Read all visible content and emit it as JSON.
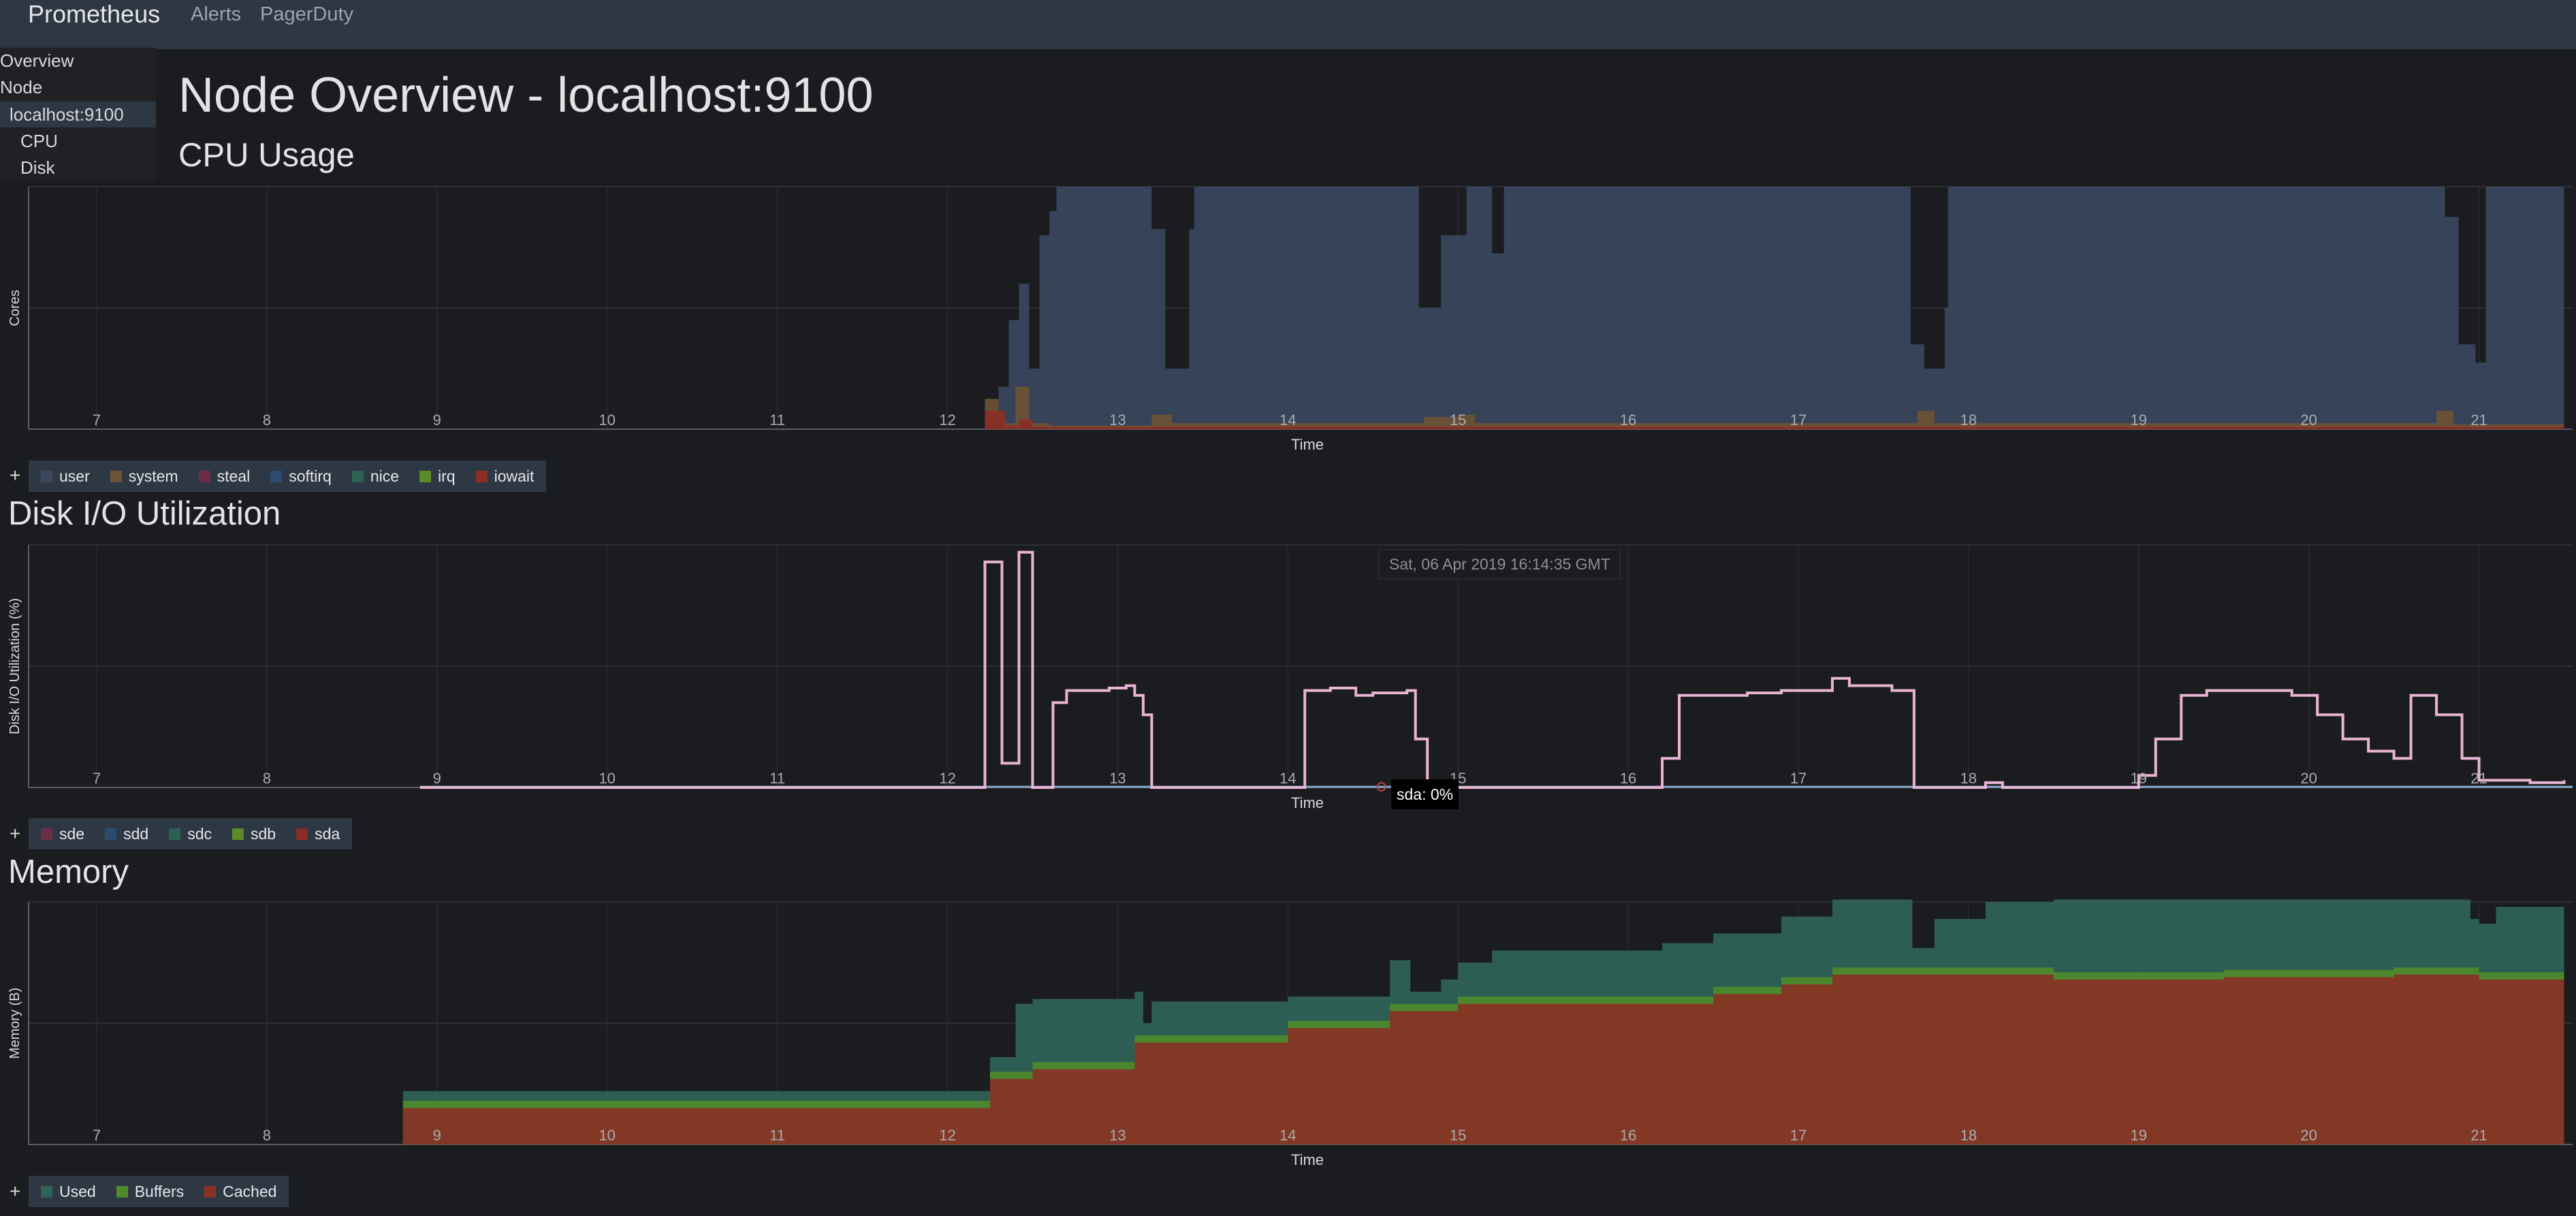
{
  "navbar": {
    "brand": "Prometheus",
    "links": [
      "Alerts",
      "PagerDuty"
    ]
  },
  "sidebar": {
    "items": [
      "Overview",
      "Node",
      "localhost:9100",
      "CPU",
      "Disk"
    ],
    "active": "localhost:9100"
  },
  "page_title": "Node Overview - localhost:9100",
  "colors": {
    "user": "#3a475d",
    "system": "#6e5335",
    "steal": "#6b2f45",
    "softirq": "#2b4c6e",
    "nice": "#2c6254",
    "irq": "#5e8a2a",
    "iowait": "#8c2e25",
    "disk_line": "#e8b4d3",
    "disk_base": "#86a8c8",
    "used": "#2f6358",
    "buffers": "#4f8a2c",
    "cached": "#883226"
  },
  "chart_data": [
    {
      "type": "area",
      "id": "cpu",
      "title": "CPU Usage",
      "xlabel": "Time",
      "ylabel": "Cores",
      "x_ticks": [
        "7",
        "8",
        "9",
        "10",
        "11",
        "12",
        "13",
        "14",
        "15",
        "16",
        "17",
        "18",
        "19",
        "20",
        "21"
      ],
      "xlim": [
        6.6,
        21.55
      ],
      "ylim": [
        0,
        2
      ],
      "legend_plus": "+",
      "legend": [
        "user",
        "system",
        "steal",
        "softirq",
        "nice",
        "irq",
        "iowait"
      ],
      "series": [
        {
          "name": "user",
          "color_key": "user",
          "points": [
            [
              12.22,
              0.05
            ],
            [
              12.3,
              0.35
            ],
            [
              12.36,
              0.9
            ],
            [
              12.42,
              1.2
            ],
            [
              12.48,
              0.5
            ],
            [
              12.54,
              1.6
            ],
            [
              12.6,
              1.8
            ],
            [
              12.64,
              2
            ],
            [
              13.15,
              2
            ],
            [
              13.2,
              1.65
            ],
            [
              13.28,
              0.5
            ],
            [
              13.42,
              1.65
            ],
            [
              13.45,
              2
            ],
            [
              14.72,
              2
            ],
            [
              14.77,
              1.0
            ],
            [
              14.9,
              1.6
            ],
            [
              15.05,
              2
            ],
            [
              15.2,
              1.45
            ],
            [
              15.22,
              1.45
            ],
            [
              15.27,
              2
            ],
            [
              17.6,
              2
            ],
            [
              17.66,
              0.7
            ],
            [
              17.74,
              0.5
            ],
            [
              17.86,
              1.0
            ],
            [
              17.88,
              2
            ],
            [
              20.72,
              2
            ],
            [
              20.8,
              1.75
            ],
            [
              20.88,
              0.7
            ],
            [
              20.98,
              0.55
            ],
            [
              21.04,
              2
            ],
            [
              21.5,
              2
            ]
          ]
        },
        {
          "name": "system",
          "color_key": "system",
          "points": [
            [
              12.22,
              0.25
            ],
            [
              12.3,
              0.05
            ],
            [
              12.4,
              0.35
            ],
            [
              12.48,
              0.05
            ],
            [
              12.6,
              0.03
            ],
            [
              13.2,
              0.12
            ],
            [
              13.32,
              0.05
            ],
            [
              14.8,
              0.1
            ],
            [
              15.0,
              0.12
            ],
            [
              15.1,
              0.05
            ],
            [
              17.7,
              0.15
            ],
            [
              17.8,
              0.05
            ],
            [
              20.75,
              0.15
            ],
            [
              20.85,
              0.04
            ],
            [
              21.5,
              0.03
            ]
          ]
        },
        {
          "name": "iowait",
          "color_key": "iowait",
          "points": [
            [
              12.22,
              0.15
            ],
            [
              12.34,
              0.03
            ],
            [
              12.42,
              0.08
            ],
            [
              12.5,
              0.02
            ],
            [
              21.5,
              0.02
            ]
          ]
        }
      ]
    },
    {
      "type": "line",
      "id": "disk",
      "title": "Disk I/O Utilization",
      "xlabel": "Time",
      "ylabel": "Disk I/O Utilization (%)",
      "x_ticks": [
        "7",
        "8",
        "9",
        "10",
        "11",
        "12",
        "13",
        "14",
        "15",
        "16",
        "17",
        "18",
        "19",
        "20",
        "21"
      ],
      "xlim": [
        6.6,
        21.55
      ],
      "ylim": [
        0,
        100
      ],
      "legend_plus": "+",
      "legend": [
        "sde",
        "sdd",
        "sdc",
        "sdb",
        "sda"
      ],
      "series": [
        {
          "name": "sda",
          "color_key": "disk_line",
          "points": [
            [
              8.9,
              0
            ],
            [
              12.2,
              0
            ],
            [
              12.22,
              93
            ],
            [
              12.3,
              93
            ],
            [
              12.32,
              10
            ],
            [
              12.4,
              10
            ],
            [
              12.42,
              97
            ],
            [
              12.48,
              97
            ],
            [
              12.5,
              0
            ],
            [
              12.58,
              0
            ],
            [
              12.62,
              35
            ],
            [
              12.7,
              40
            ],
            [
              12.9,
              40
            ],
            [
              12.95,
              41
            ],
            [
              13.05,
              42
            ],
            [
              13.1,
              38
            ],
            [
              13.15,
              30
            ],
            [
              13.2,
              0
            ],
            [
              13.5,
              0
            ],
            [
              14.02,
              0
            ],
            [
              14.1,
              40
            ],
            [
              14.25,
              41
            ],
            [
              14.4,
              38
            ],
            [
              14.5,
              39
            ],
            [
              14.7,
              40
            ],
            [
              14.75,
              20
            ],
            [
              14.82,
              0
            ],
            [
              16.1,
              0
            ],
            [
              16.2,
              12
            ],
            [
              16.3,
              38
            ],
            [
              16.5,
              38
            ],
            [
              16.7,
              39
            ],
            [
              16.9,
              40
            ],
            [
              17.2,
              45
            ],
            [
              17.3,
              42
            ],
            [
              17.55,
              40
            ],
            [
              17.68,
              0
            ],
            [
              18.0,
              0
            ],
            [
              18.1,
              2
            ],
            [
              18.2,
              0
            ],
            [
              18.97,
              0
            ],
            [
              19.0,
              5
            ],
            [
              19.1,
              20
            ],
            [
              19.25,
              38
            ],
            [
              19.4,
              40
            ],
            [
              19.6,
              40
            ],
            [
              19.8,
              40
            ],
            [
              19.9,
              38
            ],
            [
              20.05,
              30
            ],
            [
              20.2,
              20
            ],
            [
              20.35,
              15
            ],
            [
              20.5,
              12
            ],
            [
              20.6,
              38
            ],
            [
              20.75,
              30
            ],
            [
              20.9,
              12
            ],
            [
              21.0,
              3
            ],
            [
              21.3,
              2
            ],
            [
              21.5,
              3
            ]
          ]
        }
      ],
      "tooltip_time": "Sat, 06 Apr 2019 16:14:35 GMT",
      "tooltip_value": "sda: 0%"
    },
    {
      "type": "area",
      "id": "memory",
      "title": "Memory",
      "xlabel": "Time",
      "ylabel": "Memory (B)",
      "x_ticks": [
        "7",
        "8",
        "9",
        "10",
        "11",
        "12",
        "13",
        "14",
        "15",
        "16",
        "17",
        "18",
        "19",
        "20",
        "21"
      ],
      "xlim": [
        6.6,
        21.55
      ],
      "ylim": [
        0,
        100
      ],
      "legend_plus": "+",
      "legend": [
        "Used",
        "Buffers",
        "Cached"
      ],
      "series": [
        {
          "name": "Cached",
          "color_key": "cached",
          "points": [
            [
              8.8,
              15
            ],
            [
              12.2,
              15
            ],
            [
              12.25,
              27
            ],
            [
              12.5,
              31
            ],
            [
              13.1,
              42
            ],
            [
              14.0,
              48
            ],
            [
              14.6,
              55
            ],
            [
              15.0,
              58
            ],
            [
              16.2,
              58
            ],
            [
              16.5,
              62
            ],
            [
              16.9,
              66
            ],
            [
              17.2,
              70
            ],
            [
              18.1,
              70
            ],
            [
              18.5,
              68
            ],
            [
              19.5,
              69
            ],
            [
              20.5,
              70
            ],
            [
              21.0,
              68
            ],
            [
              21.5,
              67
            ]
          ]
        },
        {
          "name": "Buffers",
          "color_key": "buffers",
          "points": [
            [
              8.8,
              3
            ],
            [
              21.5,
              2
            ]
          ]
        },
        {
          "name": "Used",
          "color_key": "used",
          "points": [
            [
              8.8,
              4
            ],
            [
              12.2,
              4
            ],
            [
              12.25,
              6
            ],
            [
              12.4,
              28
            ],
            [
              12.5,
              26
            ],
            [
              13.1,
              18
            ],
            [
              13.15,
              5
            ],
            [
              13.2,
              14
            ],
            [
              14.0,
              10
            ],
            [
              14.6,
              18
            ],
            [
              14.72,
              5
            ],
            [
              14.9,
              10
            ],
            [
              15.0,
              14
            ],
            [
              15.2,
              19
            ],
            [
              16.2,
              22
            ],
            [
              16.9,
              25
            ],
            [
              17.2,
              28
            ],
            [
              17.6,
              28
            ],
            [
              17.67,
              8
            ],
            [
              17.8,
              20
            ],
            [
              18.1,
              27
            ],
            [
              18.5,
              30
            ],
            [
              19.5,
              29
            ],
            [
              20.5,
              28
            ],
            [
              20.95,
              20
            ],
            [
              21.1,
              27
            ],
            [
              21.5,
              28
            ]
          ]
        }
      ]
    }
  ]
}
